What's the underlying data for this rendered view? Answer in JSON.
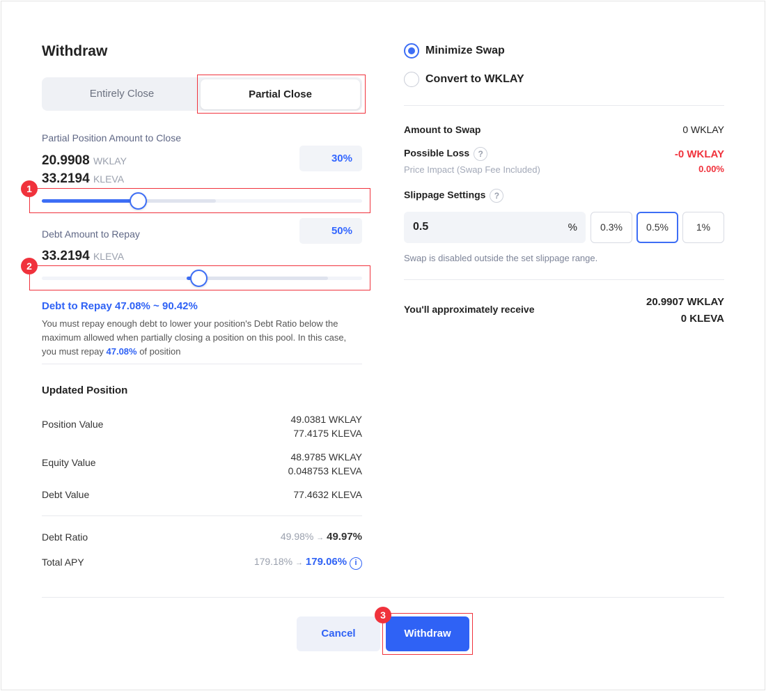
{
  "title": "Withdraw",
  "close_mode": {
    "options": [
      "Entirely Close",
      "Partial Close"
    ],
    "selected": "Partial Close"
  },
  "partial": {
    "label": "Partial Position Amount to Close",
    "amount1": "20.9908",
    "unit1": "WKLAY",
    "amount2": "33.2194",
    "unit2": "KLEVA",
    "percent_label": "30%",
    "slider_value": 30,
    "annotation": "1"
  },
  "debt": {
    "label": "Debt Amount to Repay",
    "amount": "33.2194",
    "unit": "KLEVA",
    "percent_label": "50%",
    "slider_value": 50,
    "annotation": "2"
  },
  "debt_range": {
    "heading": "Debt to Repay 47.08% ~ 90.42%",
    "text1": "You must repay enough debt to lower your position's Debt Ratio below the",
    "text2": "maximum allowed when partially closing a position on this pool. In this case,",
    "text3a": "you must repay ",
    "text3b": "47.08%",
    "text3c": " of position"
  },
  "updated": {
    "heading": "Updated Position",
    "position_value": {
      "label": "Position Value",
      "v1": "49.0381 WKLAY",
      "v2": "77.4175 KLEVA"
    },
    "equity_value": {
      "label": "Equity Value",
      "v1": "48.9785 WKLAY",
      "v2": "0.048753 KLEVA"
    },
    "debt_value": {
      "label": "Debt Value",
      "v1": "77.4632 KLEVA"
    },
    "debt_ratio": {
      "label": "Debt Ratio",
      "from": "49.98%",
      "arrow": "→",
      "to": "49.97%"
    },
    "total_apy": {
      "label": "Total APY",
      "from": "179.18%",
      "arrow": "→",
      "to": "179.06%"
    }
  },
  "swap_mode": {
    "options": [
      "Minimize Swap",
      "Convert to WKLAY"
    ],
    "selected": "Minimize Swap"
  },
  "swap": {
    "amount_label": "Amount to Swap",
    "amount": "0 WKLAY",
    "loss_label": "Possible Loss",
    "loss": "-0 WKLAY",
    "impact_label": "Price Impact (Swap Fee Included)",
    "impact": "0.00%",
    "help": "?"
  },
  "slippage": {
    "label": "Slippage Settings",
    "value": "0.5",
    "unit": "%",
    "options": [
      "0.3%",
      "0.5%",
      "1%"
    ],
    "selected": "0.5%",
    "note": "Swap is disabled outside the set slippage range."
  },
  "receive": {
    "label": "You'll approximately receive",
    "v1": "20.9907 WKLAY",
    "v2": "0 KLEVA"
  },
  "footer": {
    "cancel": "Cancel",
    "withdraw": "Withdraw",
    "annotation": "3"
  },
  "colors": {
    "accent": "#3366ff",
    "danger": "#f0323c"
  }
}
